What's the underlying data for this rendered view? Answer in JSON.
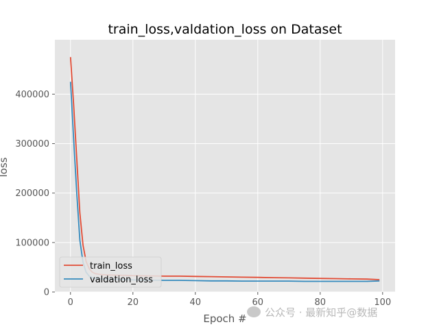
{
  "chart_data": {
    "type": "line",
    "title": "train_loss,valdation_loss on Dataset",
    "xlabel": "Epoch #",
    "ylabel": "loss",
    "xlim": [
      -5,
      104
    ],
    "ylim": [
      0,
      510000
    ],
    "xticks": [
      0,
      20,
      40,
      60,
      80,
      100
    ],
    "xtick_labels": [
      "0",
      "20",
      "40",
      "60",
      "80",
      "100"
    ],
    "yticks": [
      0,
      100000,
      200000,
      300000,
      400000
    ],
    "ytick_labels": [
      "0",
      "100000",
      "200000",
      "300000",
      "400000"
    ],
    "grid": true,
    "legend_position": "lower-left",
    "series": [
      {
        "name": "train_loss",
        "color": "#E24A33",
        "x": [
          0,
          1,
          2,
          3,
          4,
          5,
          6,
          7,
          8,
          9,
          10,
          12,
          15,
          18,
          20,
          25,
          30,
          35,
          40,
          45,
          50,
          55,
          60,
          65,
          70,
          75,
          80,
          85,
          90,
          95,
          99
        ],
        "values": [
          475000,
          380000,
          270000,
          160000,
          95000,
          62000,
          47000,
          40000,
          37000,
          36000,
          35000,
          34500,
          34000,
          33500,
          33000,
          32500,
          32000,
          32000,
          31500,
          31000,
          30500,
          30000,
          29500,
          29000,
          28500,
          28000,
          27500,
          27000,
          26500,
          26000,
          25000
        ]
      },
      {
        "name": "valdation_loss",
        "color": "#348ABD",
        "x": [
          0,
          1,
          2,
          3,
          4,
          5,
          6,
          7,
          8,
          9,
          10,
          12,
          15,
          18,
          20,
          25,
          30,
          35,
          40,
          45,
          50,
          55,
          60,
          65,
          70,
          75,
          80,
          85,
          90,
          95,
          99
        ],
        "values": [
          425000,
          310000,
          200000,
          105000,
          60000,
          40000,
          32000,
          29000,
          28000,
          27000,
          26500,
          26000,
          25500,
          25000,
          24500,
          24000,
          23500,
          23500,
          23000,
          22500,
          22500,
          22000,
          22000,
          22000,
          22000,
          21500,
          21500,
          21500,
          21500,
          21500,
          22500
        ]
      }
    ]
  },
  "watermark": {
    "text": "公众号 · 最新知乎@数据"
  }
}
